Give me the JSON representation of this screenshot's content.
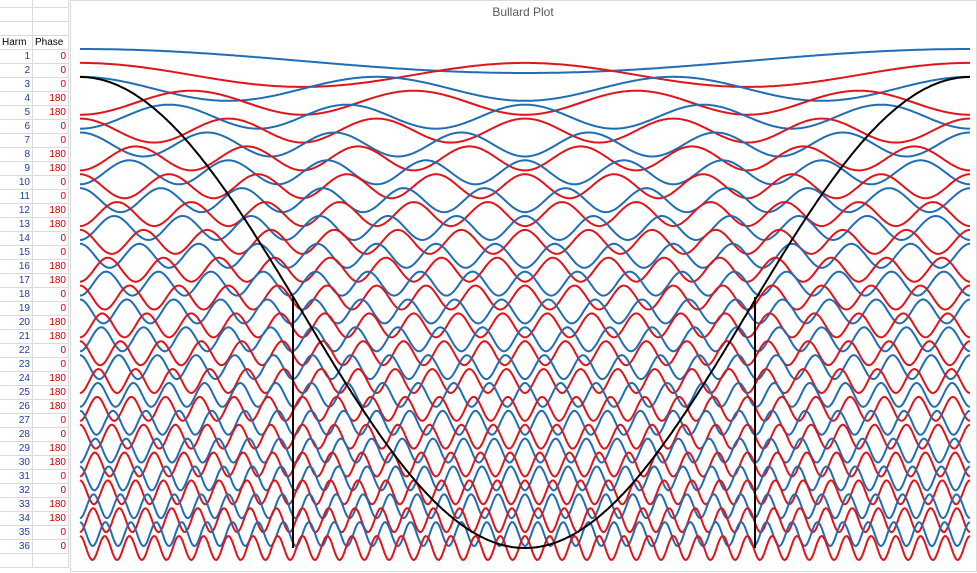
{
  "sheet": {
    "headers": [
      "Harm",
      "Phase"
    ],
    "rows": [
      [
        1,
        0
      ],
      [
        2,
        0
      ],
      [
        3,
        0
      ],
      [
        4,
        180
      ],
      [
        5,
        180
      ],
      [
        6,
        0
      ],
      [
        7,
        0
      ],
      [
        8,
        180
      ],
      [
        9,
        180
      ],
      [
        10,
        0
      ],
      [
        11,
        0
      ],
      [
        12,
        180
      ],
      [
        13,
        180
      ],
      [
        14,
        0
      ],
      [
        15,
        0
      ],
      [
        16,
        180
      ],
      [
        17,
        180
      ],
      [
        18,
        0
      ],
      [
        19,
        0
      ],
      [
        20,
        180
      ],
      [
        21,
        180
      ],
      [
        22,
        0
      ],
      [
        23,
        0
      ],
      [
        24,
        180
      ],
      [
        25,
        180
      ],
      [
        26,
        180
      ],
      [
        27,
        0
      ],
      [
        28,
        0
      ],
      [
        29,
        180
      ],
      [
        30,
        180
      ],
      [
        31,
        0
      ],
      [
        32,
        0
      ],
      [
        33,
        180
      ],
      [
        34,
        180
      ],
      [
        35,
        0
      ],
      [
        36,
        0
      ]
    ]
  },
  "chart_data": {
    "type": "bullard",
    "title": "Bullard Plot",
    "colors": [
      "#1f6db5",
      "#e0141a"
    ],
    "reference_color": "#000000"
  }
}
